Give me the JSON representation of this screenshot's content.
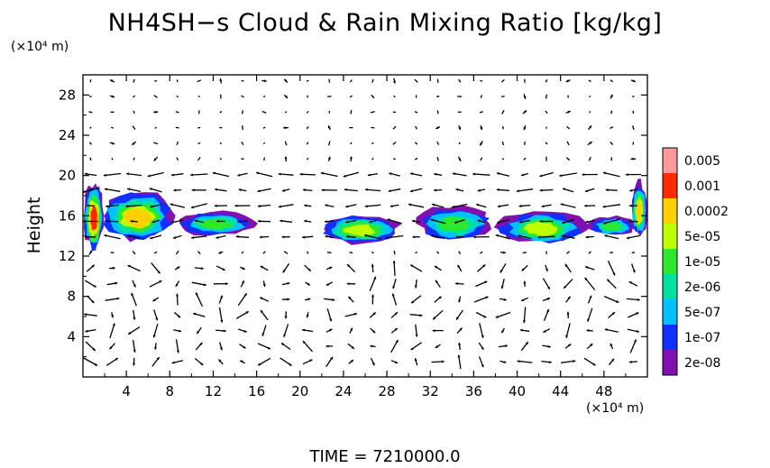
{
  "chart_data": {
    "type": "heatmap",
    "title": "NH4SH−s Cloud & Rain Mixing Ratio [kg/kg]",
    "ylabel": "Height",
    "x_unit": "(×10⁴ m)",
    "y_unit": "(×10⁴ m)",
    "xlim": [
      0,
      52
    ],
    "ylim": [
      0,
      30
    ],
    "x_ticks": [
      "4",
      "8",
      "12",
      "16",
      "20",
      "24",
      "28",
      "32",
      "36",
      "40",
      "44",
      "48"
    ],
    "y_ticks": [
      "4",
      "8",
      "12",
      "16",
      "20",
      "24",
      "28"
    ],
    "vectors_overlay": true,
    "colorbar": {
      "labels": [
        "0.005",
        "0.001",
        "0.0002",
        "5e-05",
        "1e-05",
        "2e-06",
        "5e-07",
        "1e-07",
        "2e-08"
      ],
      "colors": [
        "#ff9a9a",
        "#ff2a00",
        "#ffd000",
        "#bfff00",
        "#2ee82e",
        "#00e0a0",
        "#00c0ff",
        "#1030ff",
        "#8010b0"
      ]
    },
    "cloud_layer": [
      {
        "x0": 0.0,
        "x1": 2.0,
        "y0": 12.5,
        "y1": 19.5,
        "level": "0.001"
      },
      {
        "x0": 1.5,
        "x1": 8.5,
        "y0": 13.5,
        "y1": 18.5,
        "level": "0.0002"
      },
      {
        "x0": 8.5,
        "x1": 16.0,
        "y0": 14.0,
        "y1": 16.5,
        "level": "1e-05"
      },
      {
        "x0": 21.5,
        "x1": 29.5,
        "y0": 13.2,
        "y1": 16.2,
        "level": "5e-05"
      },
      {
        "x0": 30.5,
        "x1": 38.0,
        "y0": 13.5,
        "y1": 17.0,
        "level": "1e-05"
      },
      {
        "x0": 38.0,
        "x1": 46.5,
        "y0": 13.2,
        "y1": 16.5,
        "level": "5e-05"
      },
      {
        "x0": 46.5,
        "x1": 51.0,
        "y0": 14.0,
        "y1": 16.0,
        "level": "1e-05"
      },
      {
        "x0": 50.5,
        "x1": 52.0,
        "y0": 13.8,
        "y1": 19.5,
        "level": "0.0002"
      }
    ],
    "time_label": "TIME  =  7210000.0"
  }
}
